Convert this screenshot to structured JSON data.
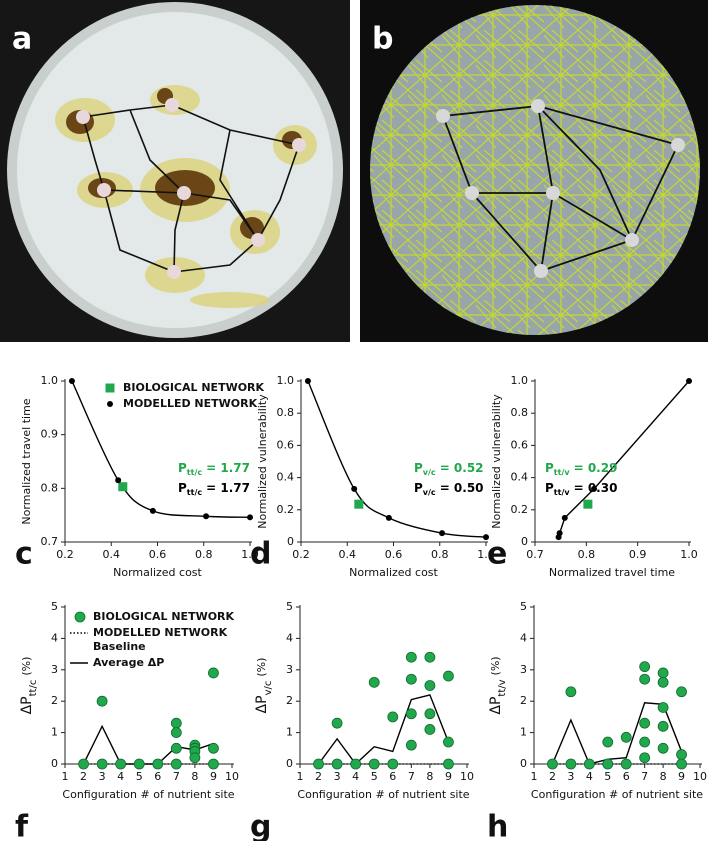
{
  "images": [
    {
      "panel": "a"
    },
    {
      "panel": "b"
    }
  ],
  "chart_data": [
    {
      "type": "scatter",
      "panel": "c",
      "x_label": "Normalized cost",
      "y_label": "Normalized travel time",
      "xlim": [
        0.2,
        1.0
      ],
      "xticks": [
        0.2,
        0.4,
        0.6,
        0.8,
        {
          "value": 1.0,
          "label": "1.0"
        }
      ],
      "ylim": [
        0.7,
        1.0
      ],
      "yticks": [
        0.7,
        0.8,
        0.9,
        {
          "value": 1.0,
          "label": "1.0"
        }
      ],
      "series": [
        {
          "name": "BIOLOGICAL NETWORK",
          "color": "#22a84c",
          "marker": "square",
          "x": [
            0.45
          ],
          "values": [
            0.803
          ]
        },
        {
          "name": "MODELLED NETWORK",
          "color": "#000000",
          "marker": "circle",
          "line": "curve",
          "x": [
            0.23,
            0.43,
            0.58,
            0.81,
            1.0
          ],
          "values": [
            1.0,
            0.815,
            0.758,
            0.748,
            0.746
          ]
        }
      ],
      "annotations": [
        {
          "symbol": "P",
          "sub": "tt/c",
          "text": "= 1.77",
          "color": "#22a84c"
        },
        {
          "symbol": "P",
          "sub": "tt/c",
          "text": "= 1.77",
          "color": "#000000"
        }
      ]
    },
    {
      "type": "scatter",
      "panel": "d",
      "x_label": "Normalized cost",
      "y_label": "Normalized vulnerability",
      "xlim": [
        0.2,
        1.0
      ],
      "xticks": [
        0.2,
        0.4,
        0.6,
        0.8,
        {
          "value": 1.0,
          "label": "1.0"
        }
      ],
      "ylim": [
        0,
        1.0
      ],
      "yticks": [
        0,
        0.2,
        0.4,
        0.6,
        0.8,
        {
          "value": 1.0,
          "label": "1.0"
        }
      ],
      "series": [
        {
          "color": "#22a84c",
          "marker": "square",
          "x": [
            0.45
          ],
          "values": [
            0.235
          ]
        },
        {
          "color": "#000000",
          "marker": "circle",
          "line": "curve",
          "x": [
            0.23,
            0.43,
            0.58,
            0.81,
            1.0
          ],
          "values": [
            1.0,
            0.33,
            0.15,
            0.055,
            0.03
          ]
        }
      ],
      "annotations": [
        {
          "symbol": "P",
          "sub": "v/c",
          "text": "= 0.52",
          "color": "#22a84c"
        },
        {
          "symbol": "P",
          "sub": "v/c",
          "text": "= 0.50",
          "color": "#000000"
        }
      ]
    },
    {
      "type": "scatter",
      "panel": "e",
      "x_label": "Normalized travel time",
      "y_label": "Normalized vulnerability",
      "xlim": [
        0.7,
        1.0
      ],
      "xticks": [
        0.7,
        0.8,
        0.9,
        {
          "value": 1.0,
          "label": "1.0"
        }
      ],
      "ylim": [
        0,
        1.0
      ],
      "yticks": [
        0,
        0.2,
        0.4,
        0.6,
        0.8,
        {
          "value": 1.0,
          "label": "1.0"
        }
      ],
      "series": [
        {
          "color": "#22a84c",
          "marker": "square",
          "x": [
            0.803
          ],
          "values": [
            0.235
          ]
        },
        {
          "color": "#000000",
          "marker": "circle",
          "line": "straight",
          "x": [
            0.746,
            0.748,
            0.758,
            0.815,
            1.0
          ],
          "values": [
            0.03,
            0.055,
            0.15,
            0.33,
            1.0
          ]
        }
      ],
      "annotations": [
        {
          "symbol": "P",
          "sub": "tt/v",
          "text": "= 0.29",
          "color": "#22a84c"
        },
        {
          "symbol": "P",
          "sub": "tt/v",
          "text": "= 0.30",
          "color": "#000000"
        }
      ]
    },
    {
      "type": "scatter",
      "panel": "f",
      "x_label": "Configuration # of nutrient site",
      "y_label": "ΔP",
      "y_label_sub": "tt/c",
      "y_label_unit": "(%)",
      "xlim": [
        1,
        10
      ],
      "xticks": [
        1,
        2,
        3,
        4,
        5,
        6,
        7,
        8,
        9,
        10
      ],
      "ylim": [
        0,
        5
      ],
      "yticks": [
        0,
        1,
        2,
        3,
        4,
        5
      ],
      "series": [
        {
          "name": "BIOLOGICAL NETWORK",
          "color": "#22a84c",
          "marker": "circle",
          "x": [
            2,
            3,
            3,
            4,
            5,
            6,
            7,
            7,
            7,
            7,
            8,
            8,
            8,
            8,
            9,
            9,
            9
          ],
          "values": [
            0,
            2.0,
            0,
            0,
            0,
            0,
            1.3,
            1.0,
            0.5,
            0,
            0.6,
            0.5,
            0.4,
            0.2,
            2.9,
            0.5,
            0
          ]
        },
        {
          "name": "MODELLED NETWORK",
          "legend_detail": "Baseline",
          "color": "#000000",
          "line": "dotted",
          "x": [
            2,
            9
          ],
          "values": [
            0,
            0
          ]
        },
        {
          "name": "Average ΔP",
          "color": "#000000",
          "line": "straight",
          "x": [
            2,
            3,
            4,
            5,
            6,
            7,
            8,
            9
          ],
          "values": [
            0,
            1.2,
            0,
            0,
            0,
            0.55,
            0.45,
            0.65
          ]
        }
      ]
    },
    {
      "type": "scatter",
      "panel": "g",
      "x_label": "Configuration # of nutrient site",
      "y_label": "ΔP",
      "y_label_sub": "v/c",
      "y_label_unit": "(%)",
      "xlim": [
        1,
        10
      ],
      "xticks": [
        1,
        2,
        3,
        4,
        5,
        6,
        7,
        8,
        9,
        10
      ],
      "ylim": [
        0,
        5
      ],
      "yticks": [
        0,
        1,
        2,
        3,
        4,
        5
      ],
      "series": [
        {
          "color": "#22a84c",
          "marker": "circle",
          "x": [
            2,
            3,
            3,
            4,
            5,
            5,
            6,
            6,
            7,
            7,
            7,
            7,
            8,
            8,
            8,
            8,
            9,
            9,
            9
          ],
          "values": [
            0,
            1.3,
            0,
            0,
            2.6,
            0,
            1.5,
            0,
            3.4,
            2.7,
            1.6,
            0.6,
            3.4,
            2.5,
            1.6,
            1.1,
            2.8,
            0.7,
            0
          ]
        },
        {
          "color": "#000000",
          "line": "dotted",
          "x": [
            2,
            9
          ],
          "values": [
            0,
            0
          ]
        },
        {
          "color": "#000000",
          "line": "straight",
          "x": [
            2,
            3,
            4,
            5,
            6,
            7,
            8,
            9
          ],
          "values": [
            0,
            0.8,
            0,
            0.55,
            0.4,
            2.05,
            2.2,
            0.7
          ]
        }
      ]
    },
    {
      "type": "scatter",
      "panel": "h",
      "x_label": "Configuration # of nutrient site",
      "y_label": "ΔP",
      "y_label_sub": "tt/v",
      "y_label_unit": "(%)",
      "xlim": [
        1,
        10
      ],
      "xticks": [
        1,
        2,
        3,
        4,
        5,
        6,
        7,
        8,
        9,
        10
      ],
      "ylim": [
        0,
        5
      ],
      "yticks": [
        0,
        1,
        2,
        3,
        4,
        5
      ],
      "series": [
        {
          "color": "#22a84c",
          "marker": "circle",
          "x": [
            2,
            3,
            3,
            4,
            5,
            5,
            6,
            6,
            7,
            7,
            7,
            7,
            7,
            8,
            8,
            8,
            8,
            8,
            9,
            9,
            9
          ],
          "values": [
            0,
            2.3,
            0,
            0,
            0.7,
            0,
            0.85,
            0,
            3.1,
            2.7,
            1.3,
            0.7,
            0.2,
            2.9,
            2.6,
            1.8,
            1.2,
            0.5,
            2.3,
            0.3,
            0
          ]
        },
        {
          "color": "#000000",
          "line": "dotted",
          "x": [
            2,
            9
          ],
          "values": [
            0,
            0
          ]
        },
        {
          "color": "#000000",
          "line": "straight",
          "x": [
            2,
            3,
            4,
            5,
            6,
            7,
            8,
            9
          ],
          "values": [
            0,
            1.4,
            0,
            0.15,
            0.2,
            1.95,
            1.9,
            0.4
          ]
        }
      ]
    }
  ]
}
